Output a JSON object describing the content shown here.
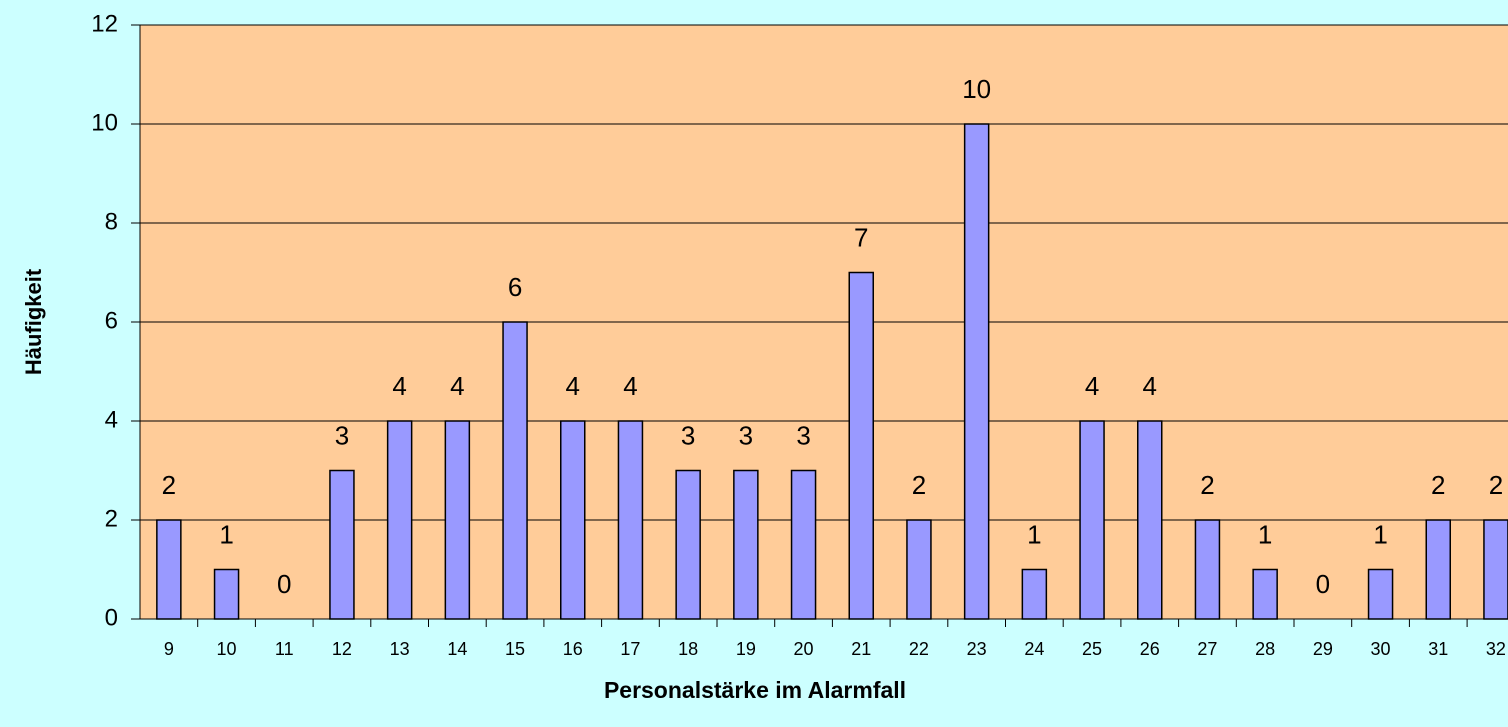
{
  "chart_data": {
    "type": "bar",
    "categories": [
      "9",
      "10",
      "11",
      "12",
      "13",
      "14",
      "15",
      "16",
      "17",
      "18",
      "19",
      "20",
      "21",
      "22",
      "23",
      "24",
      "25",
      "26",
      "27",
      "28",
      "29",
      "30",
      "31",
      "32"
    ],
    "values": [
      2,
      1,
      0,
      3,
      4,
      4,
      6,
      4,
      4,
      3,
      3,
      3,
      7,
      2,
      10,
      1,
      4,
      4,
      2,
      1,
      0,
      1,
      2,
      2
    ],
    "color": "#9999ff",
    "ylim": [
      0,
      12
    ],
    "yticks": [
      0,
      2,
      4,
      6,
      8,
      10,
      12
    ],
    "grid": true,
    "xlabel": "Personalstärke im Alarmfall",
    "ylabel": "Häufigkeit"
  }
}
